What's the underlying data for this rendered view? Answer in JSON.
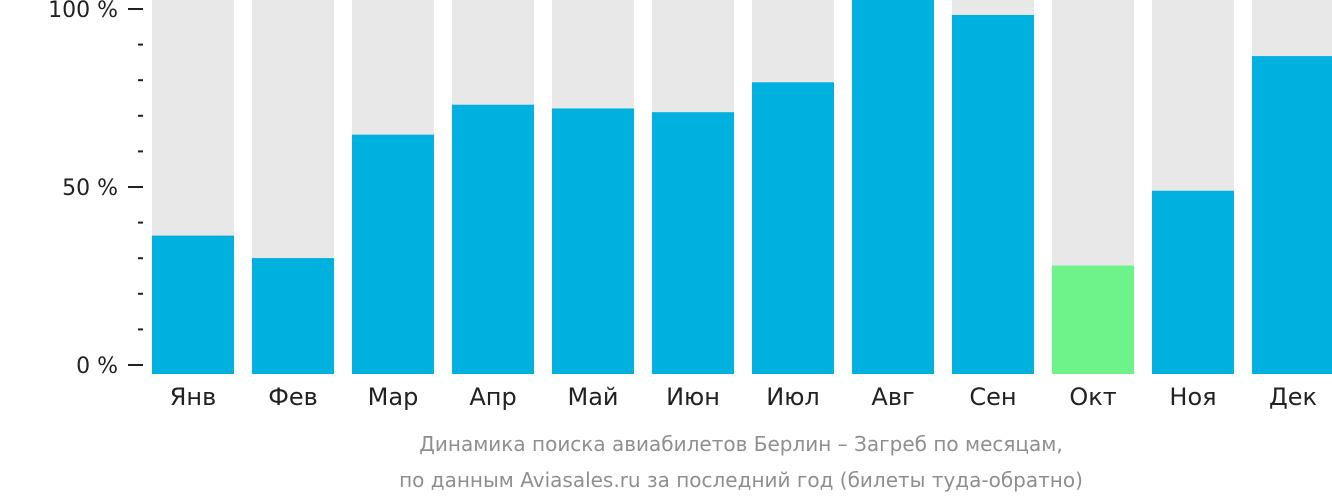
{
  "chart_data": {
    "type": "bar",
    "categories": [
      "Янв",
      "Фев",
      "Мар",
      "Апр",
      "Май",
      "Июн",
      "Июл",
      "Авг",
      "Сен",
      "Окт",
      "Ноя",
      "Дек"
    ],
    "values": [
      37,
      31,
      64,
      72,
      71,
      70,
      78,
      100,
      96,
      29,
      49,
      85
    ],
    "highlight_index": 9,
    "ylim": [
      0,
      100
    ],
    "yticks": [
      {
        "value": 0,
        "label": "0 %"
      },
      {
        "value": 50,
        "label": "50 %"
      },
      {
        "value": 100,
        "label": "100 %"
      }
    ],
    "minor_tick_step": 10,
    "colors": {
      "bar": "#00b0de",
      "highlight": "#6ef28a",
      "track": "#e8e8e8",
      "axis": "#222222"
    },
    "caption_lines": [
      "Динамика поиска авиабилетов Берлин – Загреб по месяцам,",
      "по данным Aviasales.ru за последний год (билеты туда-обратно)"
    ]
  }
}
